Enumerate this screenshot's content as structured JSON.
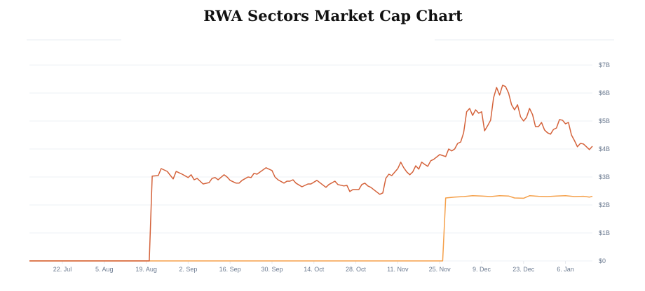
{
  "chart_data": {
    "type": "line",
    "title": "RWA Sectors Market Cap Chart",
    "xlabel": "",
    "ylabel": "",
    "x_range": [
      "2024-07-11",
      "2025-01-15"
    ],
    "ylim": [
      0,
      7
    ],
    "y_unit": "billion USD",
    "grid": true,
    "x_tick_labels": [
      {
        "date": "2024-07-22",
        "label": "22. Jul"
      },
      {
        "date": "2024-08-05",
        "label": "5. Aug"
      },
      {
        "date": "2024-08-19",
        "label": "19. Aug"
      },
      {
        "date": "2024-09-02",
        "label": "2. Sep"
      },
      {
        "date": "2024-09-16",
        "label": "16. Sep"
      },
      {
        "date": "2024-09-30",
        "label": "30. Sep"
      },
      {
        "date": "2024-10-14",
        "label": "14. Oct"
      },
      {
        "date": "2024-10-28",
        "label": "28. Oct"
      },
      {
        "date": "2024-11-11",
        "label": "11. Nov"
      },
      {
        "date": "2024-11-25",
        "label": "25. Nov"
      },
      {
        "date": "2024-12-09",
        "label": "9. Dec"
      },
      {
        "date": "2024-12-23",
        "label": "23. Dec"
      },
      {
        "date": "2025-01-06",
        "label": "6. Jan"
      }
    ],
    "y_tick_labels": [
      {
        "value": 0,
        "label": "$0"
      },
      {
        "value": 1,
        "label": "$1B"
      },
      {
        "value": 2,
        "label": "$2B"
      },
      {
        "value": 3,
        "label": "$3B"
      },
      {
        "value": 4,
        "label": "$4B"
      },
      {
        "value": 5,
        "label": "$5B"
      },
      {
        "value": 6,
        "label": "$6B"
      },
      {
        "value": 7,
        "label": "$7B"
      }
    ],
    "series": [
      {
        "color": "#d4623a",
        "points": [
          [
            "2024-07-11",
            0
          ],
          [
            "2024-08-20",
            0
          ],
          [
            "2024-08-21",
            3.03
          ],
          [
            "2024-08-23",
            3.05
          ],
          [
            "2024-08-24",
            3.3
          ],
          [
            "2024-08-26",
            3.2
          ],
          [
            "2024-08-28",
            2.93
          ],
          [
            "2024-08-29",
            3.2
          ],
          [
            "2024-08-31",
            3.1
          ],
          [
            "2024-09-02",
            2.98
          ],
          [
            "2024-09-03",
            3.08
          ],
          [
            "2024-09-04",
            2.9
          ],
          [
            "2024-09-05",
            2.95
          ],
          [
            "2024-09-07",
            2.75
          ],
          [
            "2024-09-09",
            2.8
          ],
          [
            "2024-09-10",
            2.95
          ],
          [
            "2024-09-11",
            2.98
          ],
          [
            "2024-09-12",
            2.9
          ],
          [
            "2024-09-14",
            3.08
          ],
          [
            "2024-09-15",
            3.0
          ],
          [
            "2024-09-16",
            2.88
          ],
          [
            "2024-09-18",
            2.78
          ],
          [
            "2024-09-19",
            2.78
          ],
          [
            "2024-09-20",
            2.88
          ],
          [
            "2024-09-22",
            3.0
          ],
          [
            "2024-09-23",
            2.98
          ],
          [
            "2024-09-24",
            3.13
          ],
          [
            "2024-09-25",
            3.1
          ],
          [
            "2024-09-28",
            3.33
          ],
          [
            "2024-09-30",
            3.23
          ],
          [
            "2024-10-01",
            3.0
          ],
          [
            "2024-10-02",
            2.9
          ],
          [
            "2024-10-04",
            2.78
          ],
          [
            "2024-10-05",
            2.85
          ],
          [
            "2024-10-06",
            2.85
          ],
          [
            "2024-10-07",
            2.9
          ],
          [
            "2024-10-08",
            2.78
          ],
          [
            "2024-10-10",
            2.65
          ],
          [
            "2024-10-12",
            2.75
          ],
          [
            "2024-10-13",
            2.75
          ],
          [
            "2024-10-15",
            2.88
          ],
          [
            "2024-10-18",
            2.63
          ],
          [
            "2024-10-19",
            2.73
          ],
          [
            "2024-10-21",
            2.85
          ],
          [
            "2024-10-22",
            2.73
          ],
          [
            "2024-10-24",
            2.68
          ],
          [
            "2024-10-25",
            2.7
          ],
          [
            "2024-10-26",
            2.48
          ],
          [
            "2024-10-27",
            2.55
          ],
          [
            "2024-10-29",
            2.55
          ],
          [
            "2024-10-30",
            2.73
          ],
          [
            "2024-10-31",
            2.78
          ],
          [
            "2024-11-01",
            2.68
          ],
          [
            "2024-11-02",
            2.63
          ],
          [
            "2024-11-05",
            2.38
          ],
          [
            "2024-11-06",
            2.43
          ],
          [
            "2024-11-07",
            2.95
          ],
          [
            "2024-11-08",
            3.1
          ],
          [
            "2024-11-09",
            3.05
          ],
          [
            "2024-11-11",
            3.3
          ],
          [
            "2024-11-12",
            3.53
          ],
          [
            "2024-11-13",
            3.33
          ],
          [
            "2024-11-14",
            3.18
          ],
          [
            "2024-11-15",
            3.08
          ],
          [
            "2024-11-16",
            3.18
          ],
          [
            "2024-11-17",
            3.4
          ],
          [
            "2024-11-18",
            3.28
          ],
          [
            "2024-11-19",
            3.53
          ],
          [
            "2024-11-20",
            3.45
          ],
          [
            "2024-11-21",
            3.38
          ],
          [
            "2024-11-22",
            3.58
          ],
          [
            "2024-11-23",
            3.63
          ],
          [
            "2024-11-25",
            3.8
          ],
          [
            "2024-11-27",
            3.73
          ],
          [
            "2024-11-28",
            4.0
          ],
          [
            "2024-11-29",
            3.93
          ],
          [
            "2024-11-30",
            4.0
          ],
          [
            "2024-12-01",
            4.2
          ],
          [
            "2024-12-02",
            4.25
          ],
          [
            "2024-12-03",
            4.58
          ],
          [
            "2024-12-04",
            5.33
          ],
          [
            "2024-12-05",
            5.45
          ],
          [
            "2024-12-06",
            5.2
          ],
          [
            "2024-12-07",
            5.4
          ],
          [
            "2024-12-08",
            5.28
          ],
          [
            "2024-12-09",
            5.33
          ],
          [
            "2024-12-10",
            4.65
          ],
          [
            "2024-12-11",
            4.83
          ],
          [
            "2024-12-12",
            5.03
          ],
          [
            "2024-12-13",
            5.83
          ],
          [
            "2024-12-14",
            6.2
          ],
          [
            "2024-12-15",
            5.93
          ],
          [
            "2024-12-16",
            6.28
          ],
          [
            "2024-12-17",
            6.23
          ],
          [
            "2024-12-18",
            6.0
          ],
          [
            "2024-12-19",
            5.58
          ],
          [
            "2024-12-20",
            5.4
          ],
          [
            "2024-12-21",
            5.58
          ],
          [
            "2024-12-22",
            5.15
          ],
          [
            "2024-12-23",
            5.0
          ],
          [
            "2024-12-24",
            5.13
          ],
          [
            "2024-12-25",
            5.45
          ],
          [
            "2024-12-26",
            5.23
          ],
          [
            "2024-12-27",
            4.8
          ],
          [
            "2024-12-28",
            4.8
          ],
          [
            "2024-12-29",
            4.95
          ],
          [
            "2024-12-30",
            4.68
          ],
          [
            "2024-12-31",
            4.58
          ],
          [
            "2025-01-01",
            4.53
          ],
          [
            "2025-01-02",
            4.7
          ],
          [
            "2025-01-03",
            4.75
          ],
          [
            "2025-01-04",
            5.05
          ],
          [
            "2025-01-05",
            5.03
          ],
          [
            "2025-01-06",
            4.9
          ],
          [
            "2025-01-07",
            4.95
          ],
          [
            "2025-01-08",
            4.5
          ],
          [
            "2025-01-09",
            4.3
          ],
          [
            "2025-01-10",
            4.08
          ],
          [
            "2025-01-11",
            4.2
          ],
          [
            "2025-01-12",
            4.18
          ],
          [
            "2025-01-13",
            4.08
          ],
          [
            "2025-01-14",
            3.98
          ],
          [
            "2025-01-15",
            4.1
          ]
        ]
      },
      {
        "color": "#f5a04a",
        "points": [
          [
            "2024-07-11",
            0
          ],
          [
            "2024-11-26",
            0
          ],
          [
            "2024-11-27",
            2.25
          ],
          [
            "2024-11-30",
            2.28
          ],
          [
            "2024-12-03",
            2.3
          ],
          [
            "2024-12-06",
            2.33
          ],
          [
            "2024-12-09",
            2.32
          ],
          [
            "2024-12-12",
            2.3
          ],
          [
            "2024-12-15",
            2.33
          ],
          [
            "2024-12-18",
            2.32
          ],
          [
            "2024-12-20",
            2.25
          ],
          [
            "2024-12-23",
            2.24
          ],
          [
            "2024-12-25",
            2.33
          ],
          [
            "2024-12-28",
            2.31
          ],
          [
            "2024-12-31",
            2.3
          ],
          [
            "2025-01-03",
            2.32
          ],
          [
            "2025-01-06",
            2.33
          ],
          [
            "2025-01-09",
            2.3
          ],
          [
            "2025-01-12",
            2.31
          ],
          [
            "2025-01-14",
            2.28
          ],
          [
            "2025-01-15",
            2.31
          ]
        ]
      }
    ]
  }
}
